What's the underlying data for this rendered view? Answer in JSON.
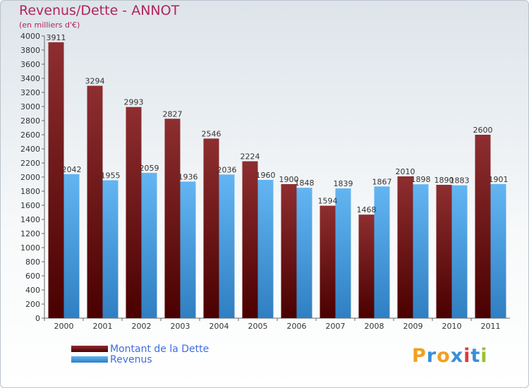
{
  "title": "Revenus/Dette - ANNOT",
  "subtitle": "(en milliers d'€)",
  "chart_data": {
    "type": "bar",
    "categories": [
      "2000",
      "2001",
      "2002",
      "2003",
      "2004",
      "2005",
      "2006",
      "2007",
      "2008",
      "2009",
      "2010",
      "2011"
    ],
    "series": [
      {
        "name": "Montant de la Dette",
        "color": "#7a1a1c",
        "values": [
          3911,
          3294,
          2993,
          2827,
          2546,
          2224,
          1900,
          1594,
          1468,
          2010,
          1890,
          2600
        ]
      },
      {
        "name": "Revenus",
        "color": "#4a9ee0",
        "values": [
          2042,
          1955,
          2059,
          1936,
          2036,
          1960,
          1848,
          1839,
          1867,
          1898,
          1883,
          1901
        ]
      }
    ],
    "data_labels": [
      [
        "3911",
        "3294",
        "2993",
        "2827",
        "2546",
        "2224",
        "1900",
        "1594",
        "1468",
        "2010",
        "1890",
        "2600"
      ],
      [
        "2042",
        "1955",
        "2059",
        "1936",
        "2036",
        "1960",
        "1848",
        "1839",
        "1867",
        "1898",
        "1883",
        "1901"
      ]
    ],
    "y_ticks": [
      "0",
      "200",
      "400",
      "600",
      "800",
      "1000",
      "1200",
      "1400",
      "1600",
      "1800",
      "2000",
      "2200",
      "2400",
      "2600",
      "2800",
      "3000",
      "3200",
      "3400",
      "3600",
      "3800",
      "4000"
    ],
    "ylim": [
      0,
      4000
    ],
    "grid": false,
    "legend_position": "bottom-left"
  },
  "logo": {
    "text": "Proxiti",
    "letters": [
      "P",
      "r",
      "o",
      "x",
      "i",
      "t",
      "i"
    ],
    "colors": [
      "#f0a020",
      "#3a8fd8",
      "#f0a020",
      "#3a8fd8",
      "#e23a3a",
      "#3a8fd8",
      "#9ac22e"
    ]
  }
}
